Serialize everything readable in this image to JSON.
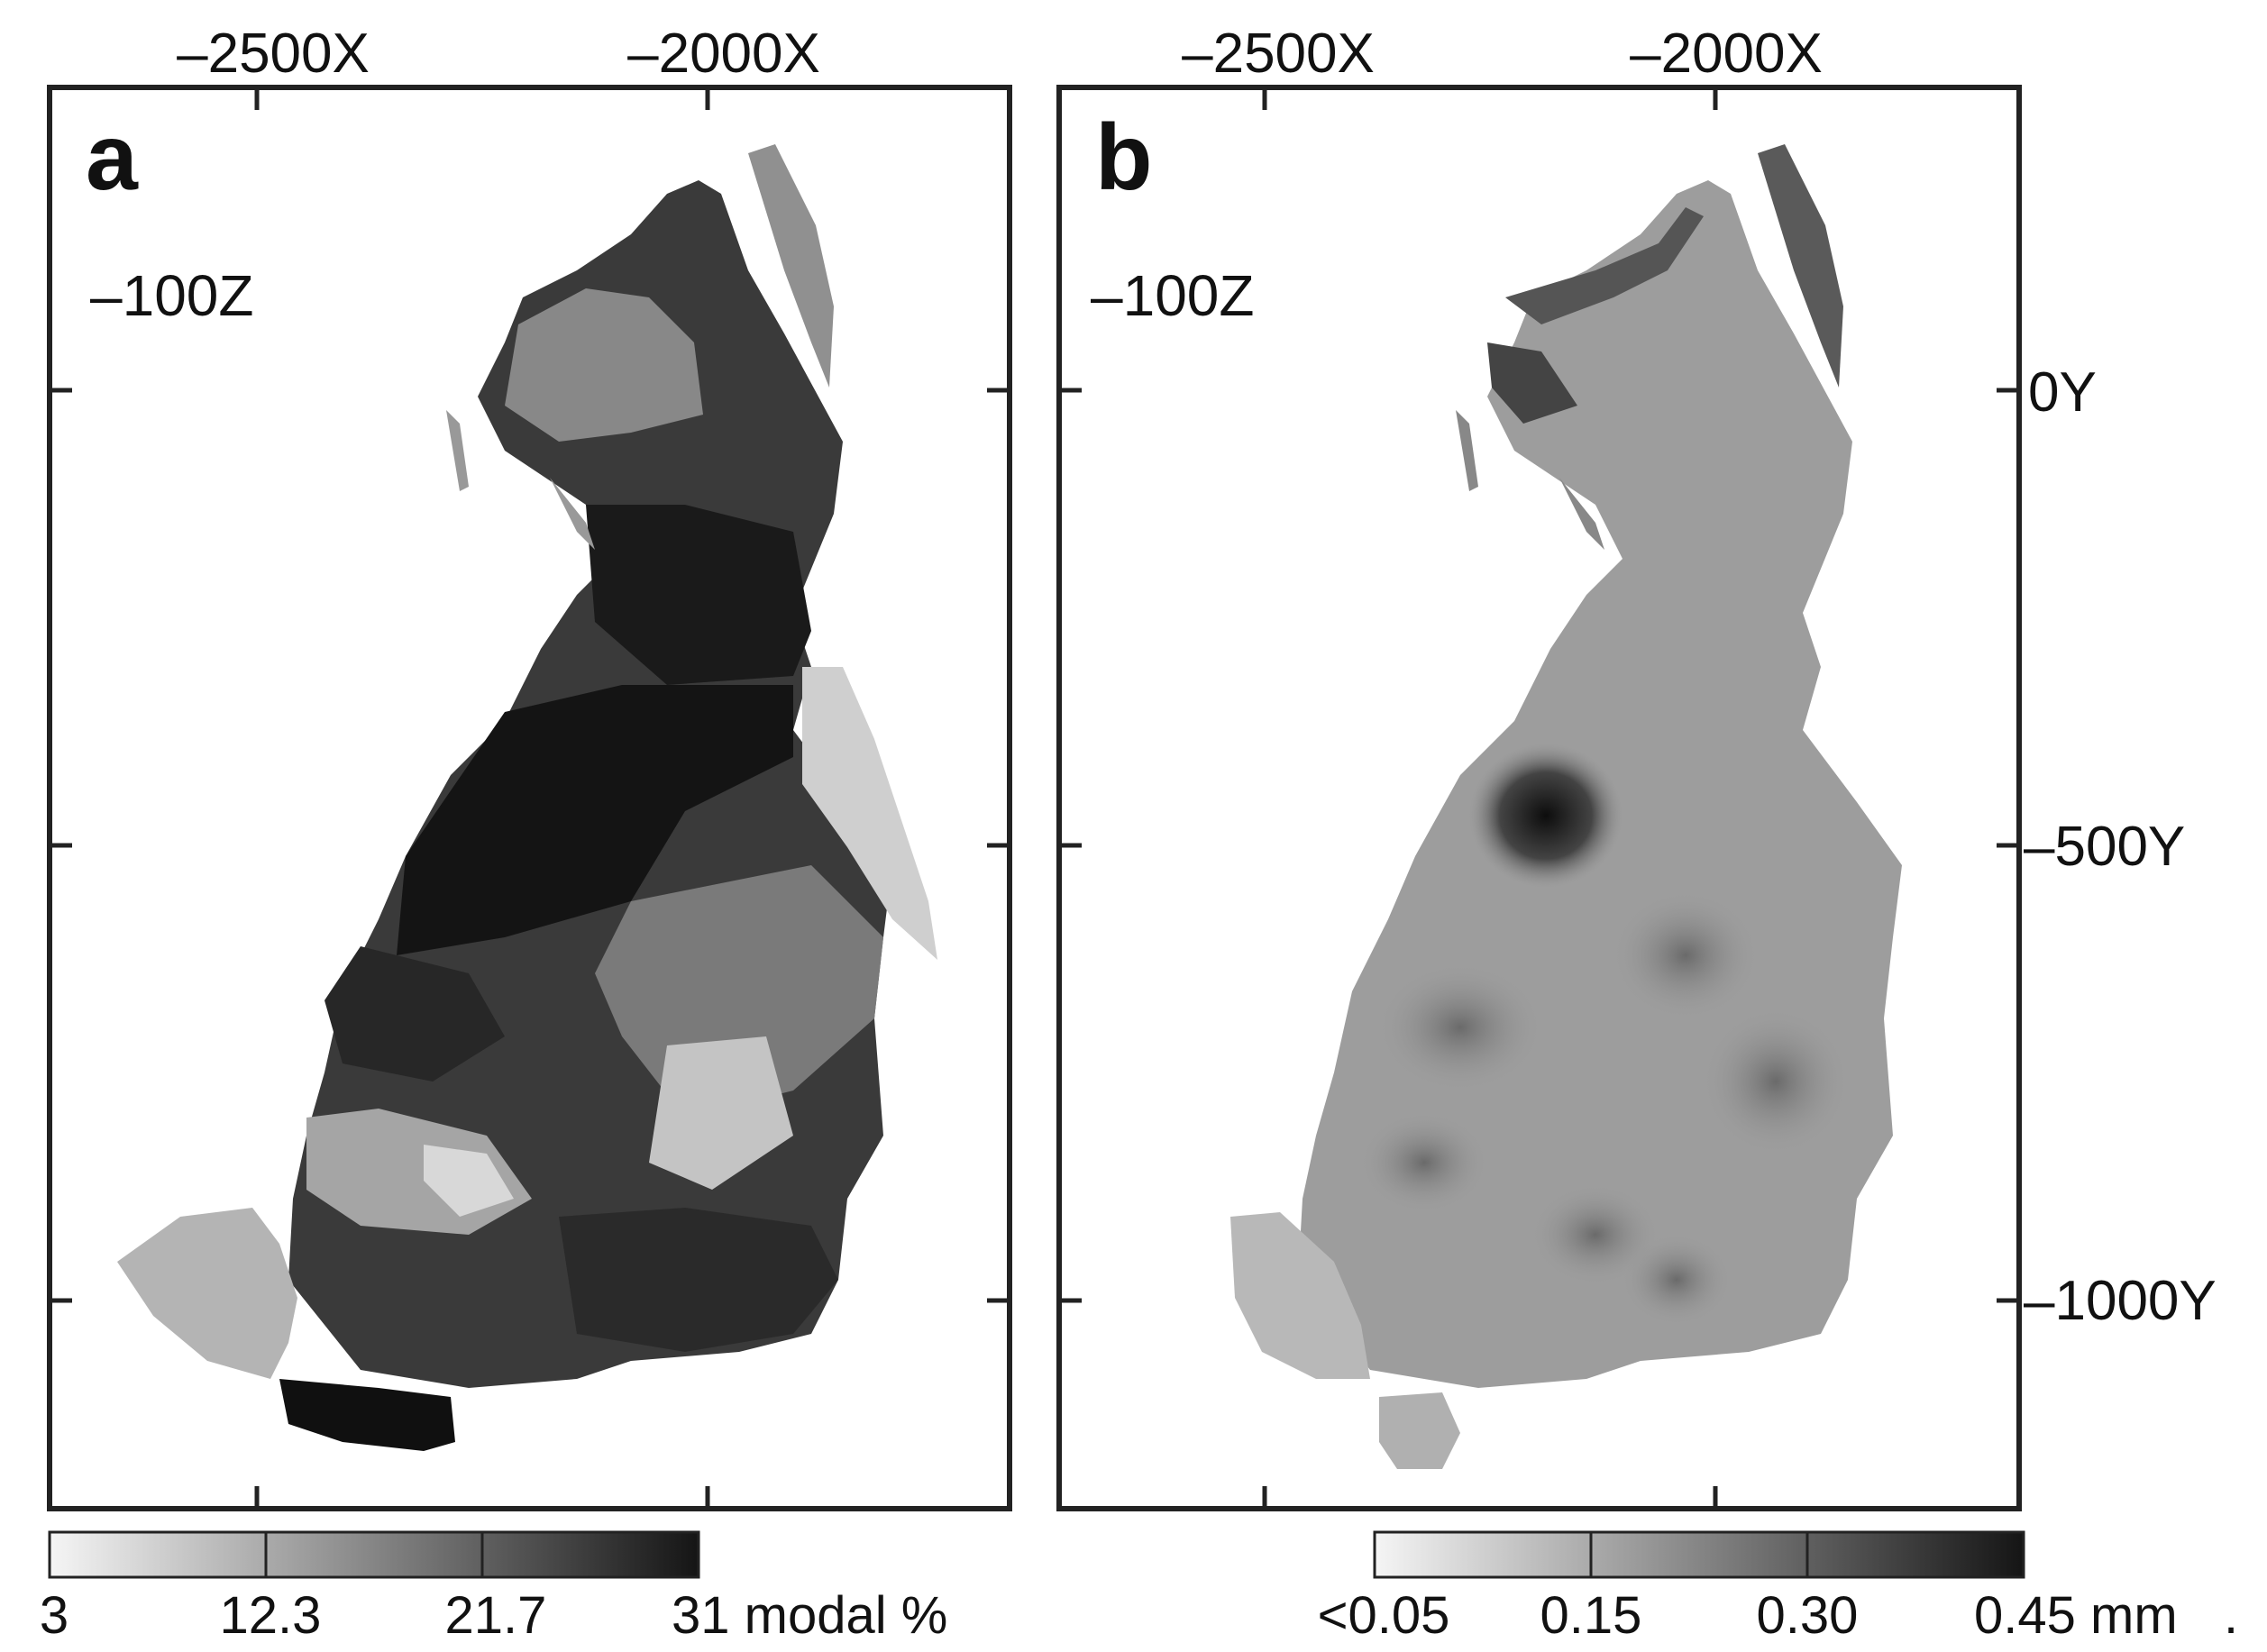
{
  "panels": [
    {
      "letter": "a",
      "z_label": "–100Z",
      "x_ticks": [
        "–2500X",
        "–2000X"
      ],
      "colorbar": {
        "labels": [
          "3",
          "12.3",
          "21.7",
          "31 modal %"
        ]
      }
    },
    {
      "letter": "b",
      "z_label": "–100Z",
      "x_ticks": [
        "–2500X",
        "–2000X"
      ],
      "y_ticks": [
        "0Y",
        "–500Y",
        "–1000Y"
      ],
      "colorbar": {
        "labels": [
          "<0.05",
          "0.15",
          "0.30",
          "0.45 mm"
        ]
      }
    }
  ],
  "trailing_mark": ".",
  "colors": {
    "frame": "#222222",
    "ramp_light": "#f4f4f4",
    "ramp_dark": "#161616"
  }
}
